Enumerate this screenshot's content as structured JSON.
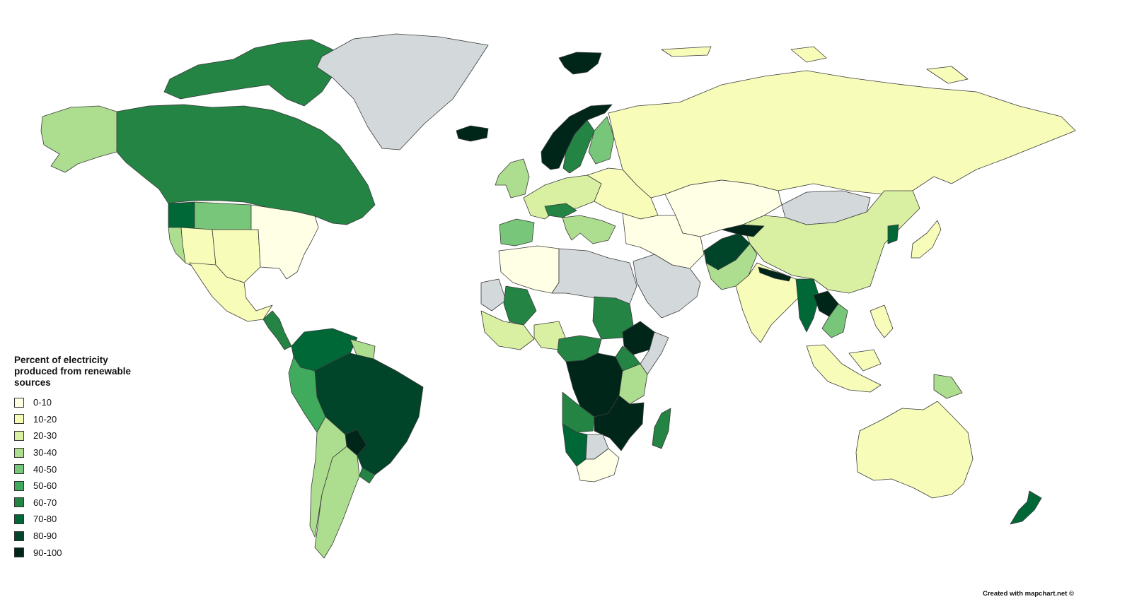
{
  "legend": {
    "title": "Percent of electricity produced from renewable sources",
    "no_data_color": "#d3d8db",
    "items": [
      {
        "label": "0-10",
        "color": "#ffffe5"
      },
      {
        "label": "10-20",
        "color": "#f7fcb9"
      },
      {
        "label": "20-30",
        "color": "#d9f0a3"
      },
      {
        "label": "30-40",
        "color": "#addd8e"
      },
      {
        "label": "40-50",
        "color": "#78c679"
      },
      {
        "label": "50-60",
        "color": "#41ab5d"
      },
      {
        "label": "60-70",
        "color": "#238443"
      },
      {
        "label": "70-80",
        "color": "#006837"
      },
      {
        "label": "80-90",
        "color": "#004529"
      },
      {
        "label": "90-100",
        "color": "#00261a"
      }
    ]
  },
  "regions": [
    {
      "name": "canada",
      "band": "60-70"
    },
    {
      "name": "canada-arctic-islands",
      "band": "60-70"
    },
    {
      "name": "alaska",
      "band": "30-40"
    },
    {
      "name": "usa-east",
      "band": "0-10"
    },
    {
      "name": "usa-plains",
      "band": "10-20"
    },
    {
      "name": "usa-mountain-west",
      "band": "10-20"
    },
    {
      "name": "usa-pacific-northwest",
      "band": "70-80"
    },
    {
      "name": "usa-montana-dakotas",
      "band": "40-50"
    },
    {
      "name": "usa-california",
      "band": "30-40"
    },
    {
      "name": "mexico",
      "band": "10-20"
    },
    {
      "name": "central-america",
      "band": "60-70"
    },
    {
      "name": "colombia-venezuela",
      "band": "70-80"
    },
    {
      "name": "guianas",
      "band": "30-40"
    },
    {
      "name": "ecuador-peru",
      "band": "50-60"
    },
    {
      "name": "brazil",
      "band": "80-90"
    },
    {
      "name": "bolivia-chile",
      "band": "30-40"
    },
    {
      "name": "argentina",
      "band": "30-40"
    },
    {
      "name": "paraguay",
      "band": "90-100"
    },
    {
      "name": "uruguay",
      "band": "60-70"
    },
    {
      "name": "greenland",
      "band": "no-data"
    },
    {
      "name": "iceland",
      "band": "90-100"
    },
    {
      "name": "svalbard",
      "band": "90-100"
    },
    {
      "name": "norway",
      "band": "90-100"
    },
    {
      "name": "sweden",
      "band": "60-70"
    },
    {
      "name": "finland",
      "band": "40-50"
    },
    {
      "name": "uk-ireland",
      "band": "30-40"
    },
    {
      "name": "western-europe",
      "band": "20-30"
    },
    {
      "name": "iberia",
      "band": "40-50"
    },
    {
      "name": "alps",
      "band": "60-70"
    },
    {
      "name": "italy-balkans",
      "band": "30-40"
    },
    {
      "name": "eastern-europe",
      "band": "10-20"
    },
    {
      "name": "russia",
      "band": "10-20"
    },
    {
      "name": "russia-arctic-islands",
      "band": "10-20"
    },
    {
      "name": "kazakhstan",
      "band": "0-10"
    },
    {
      "name": "middle-east",
      "band": "0-10"
    },
    {
      "name": "arabian-peninsula",
      "band": "no-data"
    },
    {
      "name": "afghanistan",
      "band": "80-90"
    },
    {
      "name": "tajikistan-kyrgyzstan",
      "band": "90-100"
    },
    {
      "name": "pakistan",
      "band": "30-40"
    },
    {
      "name": "india",
      "band": "10-20"
    },
    {
      "name": "nepal-bhutan",
      "band": "90-100"
    },
    {
      "name": "mongolia",
      "band": "no-data"
    },
    {
      "name": "china",
      "band": "20-30"
    },
    {
      "name": "north-korea",
      "band": "70-80"
    },
    {
      "name": "japan",
      "band": "10-20"
    },
    {
      "name": "myanmar",
      "band": "70-80"
    },
    {
      "name": "laos",
      "band": "90-100"
    },
    {
      "name": "vietnam-cambodia",
      "band": "40-50"
    },
    {
      "name": "maritime-southeast-asia",
      "band": "10-20"
    },
    {
      "name": "papua-new-guinea",
      "band": "30-40"
    },
    {
      "name": "australia",
      "band": "10-20"
    },
    {
      "name": "new-zealand",
      "band": "70-80"
    },
    {
      "name": "north-africa",
      "band": "0-10"
    },
    {
      "name": "libya-egypt-sahara",
      "band": "no-data"
    },
    {
      "name": "mauritania",
      "band": "no-data"
    },
    {
      "name": "mali",
      "band": "60-70"
    },
    {
      "name": "west-africa-coast",
      "band": "20-30"
    },
    {
      "name": "nigeria",
      "band": "20-30"
    },
    {
      "name": "sudan",
      "band": "60-70"
    },
    {
      "name": "ethiopia",
      "band": "90-100"
    },
    {
      "name": "somalia-horn",
      "band": "no-data"
    },
    {
      "name": "central-africa",
      "band": "60-70"
    },
    {
      "name": "congo-basin",
      "band": "90-100"
    },
    {
      "name": "kenya-tanzania",
      "band": "30-40"
    },
    {
      "name": "east-africa-lakes",
      "band": "60-70"
    },
    {
      "name": "angola",
      "band": "60-70"
    },
    {
      "name": "zambia-mozambique",
      "band": "90-100"
    },
    {
      "name": "namibia",
      "band": "70-80"
    },
    {
      "name": "botswana",
      "band": "no-data"
    },
    {
      "name": "south-africa",
      "band": "0-10"
    },
    {
      "name": "madagascar",
      "band": "60-70"
    }
  ],
  "credit": "Created with mapchart.net ©"
}
